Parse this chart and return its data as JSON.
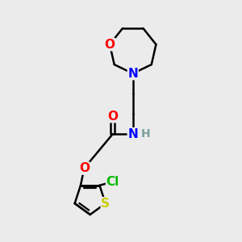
{
  "bg_color": "#ebebeb",
  "bond_color": "#000000",
  "atom_colors": {
    "O": "#ff0000",
    "N": "#0000ff",
    "S": "#cccc00",
    "Cl": "#00bb00",
    "H": "#7f9f9f",
    "C": "#000000"
  },
  "line_width": 1.8,
  "font_size": 11
}
